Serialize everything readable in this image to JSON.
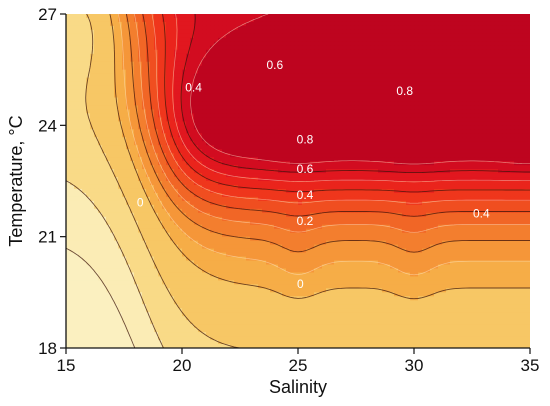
{
  "chart_data": {
    "type": "heatmap",
    "subtype": "filled-contour",
    "title": "",
    "xlabel": "Salinity",
    "ylabel": "Temperature, °C",
    "xlim": [
      15,
      35
    ],
    "ylim": [
      18,
      27
    ],
    "x_ticks": [
      15,
      20,
      25,
      30,
      35
    ],
    "y_ticks": [
      18,
      21,
      24,
      27
    ],
    "x_tick_labels": [
      "15",
      "20",
      "25",
      "30",
      "35"
    ],
    "y_tick_labels": [
      "18",
      "21",
      "24",
      "27"
    ],
    "color_scale": {
      "low": "#f9e7a0",
      "mid": "#f5a13c",
      "high": "#c4001d",
      "stops": [
        {
          "value": -0.6,
          "color": "#fbf0c0"
        },
        {
          "value": -0.3,
          "color": "#f8d57c"
        },
        {
          "value": 0.0,
          "color": "#f6b84e"
        },
        {
          "value": 0.2,
          "color": "#f48a32"
        },
        {
          "value": 0.4,
          "color": "#f05a22"
        },
        {
          "value": 0.6,
          "color": "#ee2a1a"
        },
        {
          "value": 0.8,
          "color": "#dc1020"
        },
        {
          "value": 1.0,
          "color": "#b4001e"
        }
      ]
    },
    "contour_levels": [
      -0.6,
      -0.4,
      -0.2,
      0,
      0.1,
      0.2,
      0.3,
      0.4,
      0.5,
      0.6,
      0.7,
      0.8,
      0.9
    ],
    "contour_labels": [
      {
        "text": "0.4",
        "x": 20.5,
        "y": 25.0
      },
      {
        "text": "0.6",
        "x": 24.0,
        "y": 25.6
      },
      {
        "text": "0.8",
        "x": 29.6,
        "y": 24.9
      },
      {
        "text": "0.8",
        "x": 25.3,
        "y": 23.6
      },
      {
        "text": "0.6",
        "x": 25.3,
        "y": 22.8
      },
      {
        "text": "0.4",
        "x": 25.3,
        "y": 22.1
      },
      {
        "text": "0.2",
        "x": 25.3,
        "y": 21.4
      },
      {
        "text": "0",
        "x": 18.2,
        "y": 21.9
      },
      {
        "text": "0",
        "x": 25.1,
        "y": 19.7
      },
      {
        "text": "0.4",
        "x": 32.9,
        "y": 21.6
      }
    ],
    "grid": false
  }
}
